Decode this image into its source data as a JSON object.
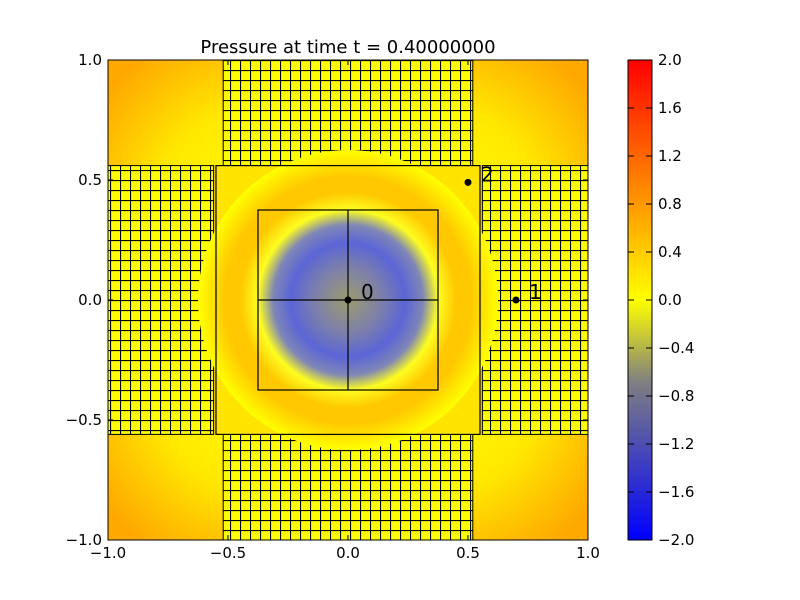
{
  "chart_data": {
    "type": "heatmap",
    "title": "Pressure at time t =      0.40000000",
    "xlabel": "",
    "ylabel": "",
    "xlim": [
      -1.0,
      1.0
    ],
    "ylim": [
      -1.0,
      1.0
    ],
    "x_ticks": [
      -1.0,
      -0.5,
      0.0,
      0.5,
      1.0
    ],
    "x_tick_labels": [
      "−1.0",
      "−0.5",
      "0.0",
      "0.5",
      "1.0"
    ],
    "y_ticks": [
      -1.0,
      -0.5,
      0.0,
      0.5,
      1.0
    ],
    "y_tick_labels": [
      "−1.0",
      "−0.5",
      "0.0",
      "0.5",
      "1.0"
    ],
    "field": {
      "description_values": "radial pressure pulse centred at origin",
      "center": [
        0.0,
        0.0
      ],
      "min_value": -1.1,
      "max_value": 0.6
    },
    "colorbar": {
      "vmin": -2.0,
      "vmax": 2.0,
      "ticks": [
        2.0,
        1.6,
        1.2,
        0.8,
        0.4,
        0.0,
        -0.4,
        -0.8,
        -1.2,
        -1.6,
        -2.0
      ],
      "tick_labels": [
        "2.0",
        "1.6",
        "1.2",
        "0.8",
        "0.4",
        "0.0",
        "−0.4",
        "−0.8",
        "−1.2",
        "−1.6",
        "−2.0"
      ],
      "colors": [
        "#0000ff",
        "#808080",
        "#ffff00",
        "#ff0000"
      ]
    },
    "gauges": [
      {
        "label": "0",
        "x": 0.0,
        "y": 0.0
      },
      {
        "label": "1",
        "x": 0.7,
        "y": 0.0
      },
      {
        "label": "2",
        "x": 0.5,
        "y": 0.49
      }
    ],
    "patch_boxes": [
      [
        -0.375,
        0.375,
        -0.375,
        0.375
      ],
      [
        -0.55,
        0.55,
        -0.56,
        0.56
      ]
    ],
    "grid_lines": {
      "inner_x": [
        0.0
      ],
      "inner_y": [
        0.0
      ]
    },
    "fine_grid_regions": [
      {
        "name": "top",
        "x": [
          -0.52,
          0.52
        ],
        "y": [
          0.56,
          1.0
        ]
      },
      {
        "name": "bottom",
        "x": [
          -0.52,
          0.52
        ],
        "y": [
          -1.0,
          -0.56
        ]
      },
      {
        "name": "left",
        "x": [
          -1.0,
          -0.56
        ],
        "y": [
          -0.56,
          0.56
        ]
      },
      {
        "name": "right",
        "x": [
          0.56,
          1.0
        ],
        "y": [
          -0.56,
          0.56
        ]
      }
    ]
  }
}
